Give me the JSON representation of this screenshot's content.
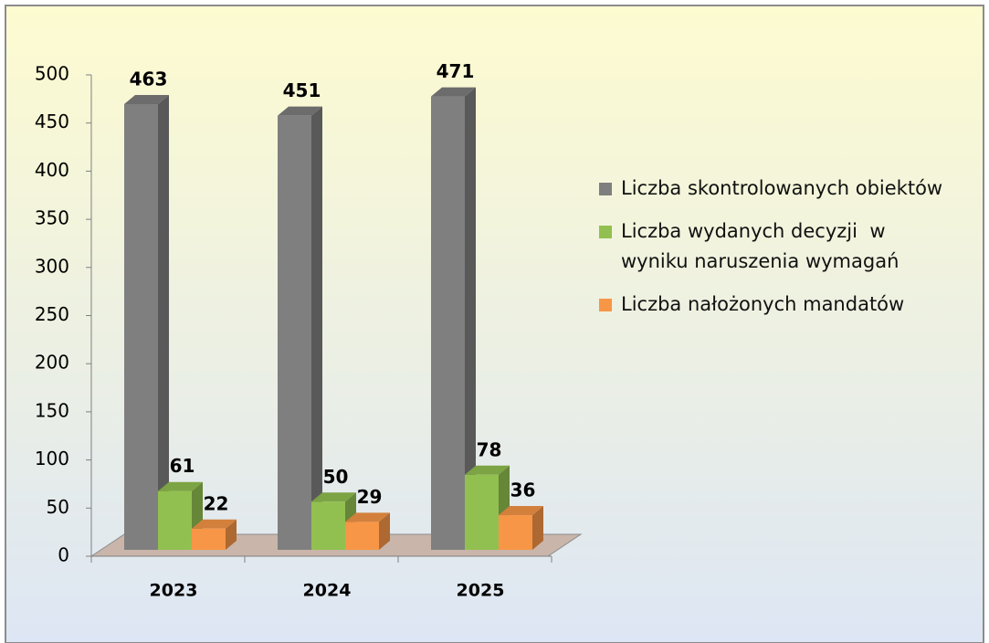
{
  "chart_data": {
    "type": "bar3d",
    "categories": [
      "2023",
      "2024",
      "2025"
    ],
    "series": [
      {
        "name": "Liczba skontrolowanych obiektów",
        "color": "#7f7f7f",
        "values": [
          463,
          451,
          471
        ]
      },
      {
        "name": "Liczba wydanych decyzji  w wyniku naruszenia wymagań",
        "color": "#92c050",
        "values": [
          61,
          50,
          78
        ]
      },
      {
        "name": "Liczba nałożonych mandatów",
        "color": "#f79646",
        "values": [
          22,
          29,
          36
        ]
      }
    ],
    "ylim": [
      0,
      500
    ],
    "yticks": [
      0,
      50,
      100,
      150,
      200,
      250,
      300,
      350,
      400,
      450,
      500
    ],
    "legend": "right"
  }
}
